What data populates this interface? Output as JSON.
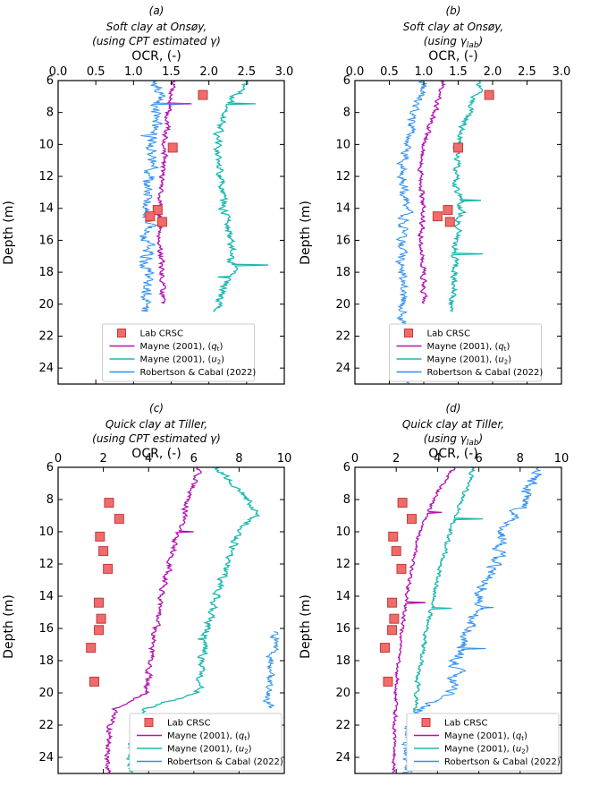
{
  "figure": {
    "colors": {
      "lab": "#f26b6b",
      "lab_edge": "#c23b3b",
      "mayne_qt": "#b312b3",
      "mayne_u2": "#19b8b0",
      "robertson": "#2f8ff0"
    },
    "legend_entries": [
      "Lab CRSC",
      "Mayne (2001), (q_t)",
      "Mayne (2001), (u_2)",
      "Robertson & Cabal (2022)"
    ]
  },
  "chart_data": [
    {
      "id": "a",
      "type": "line",
      "panel_label": "(a)",
      "title_line1": "Soft clay at Onsøy,",
      "title_line2": "(using CPT estimated γ)",
      "xlabel": "OCR, (-)",
      "ylabel": "Depth (m)",
      "xlim": [
        0,
        3
      ],
      "ylim": [
        6,
        25
      ],
      "xticks": [
        "0.0",
        "0.5",
        "1.0",
        "1.5",
        "2.0",
        "2.5",
        "3.0"
      ],
      "yticks": [
        "6",
        "8",
        "10",
        "12",
        "14",
        "16",
        "18",
        "20",
        "22",
        "24"
      ],
      "legend_location": "lower-center",
      "legend_labels": [
        "Lab CRSC",
        "Mayne (2001), (",
        "Mayne (2001), (",
        "Robertson & Cabal (2022)"
      ],
      "legend_subs": [
        "",
        "t",
        "2",
        ""
      ],
      "legend_mainletters": [
        "",
        "q",
        "u",
        ""
      ],
      "lab_crsc": [
        [
          1.92,
          6.9
        ],
        [
          1.52,
          10.2
        ],
        [
          1.32,
          14.1
        ],
        [
          1.22,
          14.5
        ],
        [
          1.38,
          14.85
        ]
      ],
      "series": [
        {
          "name": "Mayne (2001), (qt)",
          "key": "mayne_qt",
          "depth_top": 6,
          "depth_bottom": 20,
          "profile": [
            [
              6,
              1.55
            ],
            [
              8,
              1.45
            ],
            [
              10,
              1.42
            ],
            [
              12,
              1.38
            ],
            [
              14,
              1.35
            ],
            [
              16,
              1.35
            ],
            [
              18,
              1.38
            ],
            [
              20,
              1.4
            ]
          ],
          "noise": 0.05
        },
        {
          "name": "Mayne (2001), (u2)",
          "key": "mayne_u2",
          "depth_top": 6,
          "depth_bottom": 20.5,
          "profile": [
            [
              6,
              2.5
            ],
            [
              8,
              2.2
            ],
            [
              10,
              2.1
            ],
            [
              12,
              2.15
            ],
            [
              14,
              2.2
            ],
            [
              16,
              2.3
            ],
            [
              18,
              2.3
            ],
            [
              20,
              2.1
            ]
          ],
          "noise": 0.07
        },
        {
          "name": "Robertson & Cabal (2022)",
          "key": "robertson",
          "depth_top": 6,
          "depth_bottom": 20.5,
          "profile": [
            [
              6,
              1.35
            ],
            [
              8,
              1.3
            ],
            [
              10,
              1.25
            ],
            [
              12,
              1.2
            ],
            [
              14,
              1.2
            ],
            [
              16,
              1.18
            ],
            [
              18,
              1.18
            ],
            [
              20,
              1.15
            ]
          ],
          "noise": 0.12
        }
      ]
    },
    {
      "id": "b",
      "type": "line",
      "panel_label": "(b)",
      "title_line1": "Soft clay at Onsøy,",
      "title_line2": "(using γ",
      "title_sub": "lab",
      "title_end": ")",
      "xlabel": "OCR, (-)",
      "ylabel": "Depth (m)",
      "xlim": [
        0,
        3
      ],
      "ylim": [
        6,
        25
      ],
      "xticks": [
        "0.0",
        "0.5",
        "1.0",
        "1.5",
        "2.0",
        "2.5",
        "3.0"
      ],
      "yticks": [
        "6",
        "8",
        "10",
        "12",
        "14",
        "16",
        "18",
        "20",
        "22",
        "24"
      ],
      "legend_location": "lower-center",
      "legend_labels": [
        "Lab CRSC",
        "Mayne (2001), (",
        "Mayne (2001), (",
        "Robertson & Cabal (2022)"
      ],
      "legend_subs": [
        "",
        "t",
        "2",
        ""
      ],
      "legend_mainletters": [
        "",
        "q",
        "u",
        ""
      ],
      "lab_crsc": [
        [
          1.95,
          6.9
        ],
        [
          1.5,
          10.2
        ],
        [
          1.35,
          14.1
        ],
        [
          1.2,
          14.5
        ],
        [
          1.38,
          14.85
        ]
      ],
      "series": [
        {
          "name": "Mayne (2001), (qt)",
          "key": "mayne_qt",
          "depth_top": 6,
          "depth_bottom": 20,
          "profile": [
            [
              6,
              1.3
            ],
            [
              8,
              1.15
            ],
            [
              10,
              1.0
            ],
            [
              12,
              0.95
            ],
            [
              14,
              1.0
            ],
            [
              16,
              0.95
            ],
            [
              18,
              1.0
            ],
            [
              20,
              1.0
            ]
          ],
          "noise": 0.05
        },
        {
          "name": "Mayne (2001), (u2)",
          "key": "mayne_u2",
          "depth_top": 6,
          "depth_bottom": 20.5,
          "profile": [
            [
              6,
              1.85
            ],
            [
              8,
              1.65
            ],
            [
              10,
              1.5
            ],
            [
              12,
              1.45
            ],
            [
              14,
              1.55
            ],
            [
              16,
              1.45
            ],
            [
              18,
              1.45
            ],
            [
              20,
              1.4
            ]
          ],
          "noise": 0.07
        },
        {
          "name": "Robertson & Cabal (2022)",
          "key": "robertson",
          "depth_top": 6,
          "depth_bottom": 25,
          "profile": [
            [
              6,
              1.0
            ],
            [
              8,
              0.85
            ],
            [
              10,
              0.75
            ],
            [
              12,
              0.7
            ],
            [
              14,
              0.75
            ],
            [
              16,
              0.68
            ],
            [
              18,
              0.68
            ],
            [
              20,
              0.7
            ],
            [
              22,
              0.7
            ],
            [
              24,
              0.72
            ],
            [
              25,
              0.72
            ]
          ],
          "noise": 0.1
        }
      ]
    },
    {
      "id": "c",
      "type": "line",
      "panel_label": "(c)",
      "title_line1": "Quick clay at Tiller,",
      "title_line2": "(using CPT estimated γ)",
      "xlabel": "OCR, (-)",
      "ylabel": "Depth (m)",
      "xlim": [
        0,
        10
      ],
      "ylim": [
        6,
        25
      ],
      "xticks": [
        "0",
        "2",
        "4",
        "6",
        "8",
        "10"
      ],
      "yticks": [
        "6",
        "8",
        "10",
        "12",
        "14",
        "16",
        "18",
        "20",
        "22",
        "24"
      ],
      "legend_location": "lower-right",
      "legend_labels": [
        "Lab CRSC",
        "Mayne (2001), (",
        "Mayne (2001), (",
        "Robertson & Cabal (2022)"
      ],
      "legend_subs": [
        "",
        "t",
        "2",
        ""
      ],
      "legend_mainletters": [
        "",
        "q",
        "u",
        ""
      ],
      "lab_crsc": [
        [
          2.25,
          8.2
        ],
        [
          2.7,
          9.2
        ],
        [
          1.85,
          10.3
        ],
        [
          2.0,
          11.2
        ],
        [
          2.2,
          12.3
        ],
        [
          1.8,
          14.4
        ],
        [
          1.9,
          15.4
        ],
        [
          1.8,
          16.1
        ],
        [
          1.45,
          17.2
        ],
        [
          1.6,
          19.3
        ]
      ],
      "series": [
        {
          "name": "Mayne (2001), (qt)",
          "key": "mayne_qt",
          "depth_top": 6,
          "depth_bottom": 25,
          "profile": [
            [
              6,
              6.2
            ],
            [
              8,
              5.8
            ],
            [
              10,
              5.3
            ],
            [
              12,
              4.9
            ],
            [
              14,
              4.6
            ],
            [
              16,
              4.3
            ],
            [
              18,
              4.1
            ],
            [
              20,
              3.9
            ],
            [
              21,
              2.5
            ],
            [
              22,
              2.3
            ],
            [
              24,
              2.2
            ],
            [
              25,
              2.2
            ]
          ],
          "noise": 0.18
        },
        {
          "name": "Mayne (2001), (u2)",
          "key": "mayne_u2",
          "depth_top": 6,
          "depth_bottom": 25,
          "profile": [
            [
              6,
              7.0
            ],
            [
              8,
              8.4
            ],
            [
              9,
              8.8
            ],
            [
              10,
              8.0
            ],
            [
              12,
              7.5
            ],
            [
              14,
              7.0
            ],
            [
              16,
              6.6
            ],
            [
              18,
              6.4
            ],
            [
              20,
              6.2
            ],
            [
              21,
              3.8
            ],
            [
              22,
              3.4
            ],
            [
              24,
              3.2
            ],
            [
              25,
              3.2
            ]
          ],
          "noise": 0.22
        },
        {
          "name": "Robertson & Cabal (2022)",
          "key": "robertson",
          "depth_top": 16.2,
          "depth_bottom": 21,
          "profile": [
            [
              16.2,
              9.6
            ],
            [
              18,
              9.4
            ],
            [
              20,
              9.3
            ],
            [
              21,
              9.2
            ]
          ],
          "noise": 0.3
        }
      ]
    },
    {
      "id": "d",
      "type": "line",
      "panel_label": "(d)",
      "title_line1": "Quick clay at Tiller,",
      "title_line2": "(using γ",
      "title_sub": "lab",
      "title_end": ")",
      "xlabel": "OCR, (-)",
      "ylabel": "Depth (m)",
      "xlim": [
        0,
        10
      ],
      "ylim": [
        6,
        25
      ],
      "xticks": [
        "0",
        "2",
        "4",
        "6",
        "8",
        "10"
      ],
      "yticks": [
        "6",
        "8",
        "10",
        "12",
        "14",
        "16",
        "18",
        "20",
        "22",
        "24"
      ],
      "legend_location": "lower-right",
      "legend_labels": [
        "Lab CRSC",
        "Mayne (2001), (",
        "Mayne (2001), (",
        "Robertson & Cabal (2022)"
      ],
      "legend_subs": [
        "",
        "t",
        "2",
        ""
      ],
      "legend_mainletters": [
        "",
        "q",
        "u",
        ""
      ],
      "lab_crsc": [
        [
          2.3,
          8.2
        ],
        [
          2.75,
          9.2
        ],
        [
          1.85,
          10.3
        ],
        [
          2.0,
          11.2
        ],
        [
          2.25,
          12.3
        ],
        [
          1.8,
          14.4
        ],
        [
          1.9,
          15.4
        ],
        [
          1.8,
          16.1
        ],
        [
          1.45,
          17.2
        ],
        [
          1.6,
          19.3
        ]
      ],
      "series": [
        {
          "name": "Mayne (2001), (qt)",
          "key": "mayne_qt",
          "depth_top": 6,
          "depth_bottom": 25,
          "profile": [
            [
              6,
              4.8
            ],
            [
              8,
              3.8
            ],
            [
              10,
              3.1
            ],
            [
              12,
              2.8
            ],
            [
              14,
              2.5
            ],
            [
              16,
              2.3
            ],
            [
              18,
              2.1
            ],
            [
              20,
              2.0
            ],
            [
              22,
              1.9
            ],
            [
              24,
              1.9
            ],
            [
              25,
              1.9
            ]
          ],
          "noise": 0.12
        },
        {
          "name": "Mayne (2001), (u2)",
          "key": "mayne_u2",
          "depth_top": 6,
          "depth_bottom": 25,
          "profile": [
            [
              6,
              5.8
            ],
            [
              8,
              5.2
            ],
            [
              10,
              4.6
            ],
            [
              12,
              4.2
            ],
            [
              14,
              3.8
            ],
            [
              16,
              3.5
            ],
            [
              18,
              3.2
            ],
            [
              20,
              3.0
            ],
            [
              22,
              2.8
            ],
            [
              24,
              2.7
            ],
            [
              25,
              2.7
            ]
          ],
          "noise": 0.15
        },
        {
          "name": "Robertson & Cabal (2022)",
          "key": "robertson",
          "depth_top": 6,
          "depth_bottom": 25,
          "profile": [
            [
              6,
              9.0
            ],
            [
              8,
              8.2
            ],
            [
              10,
              7.3
            ],
            [
              12,
              6.8
            ],
            [
              14,
              6.1
            ],
            [
              16,
              5.5
            ],
            [
              18,
              5.0
            ],
            [
              20,
              4.6
            ],
            [
              21,
              3.2
            ],
            [
              22,
              2.7
            ],
            [
              24,
              2.5
            ],
            [
              25,
              2.5
            ]
          ],
          "noise": 0.45
        }
      ]
    }
  ]
}
